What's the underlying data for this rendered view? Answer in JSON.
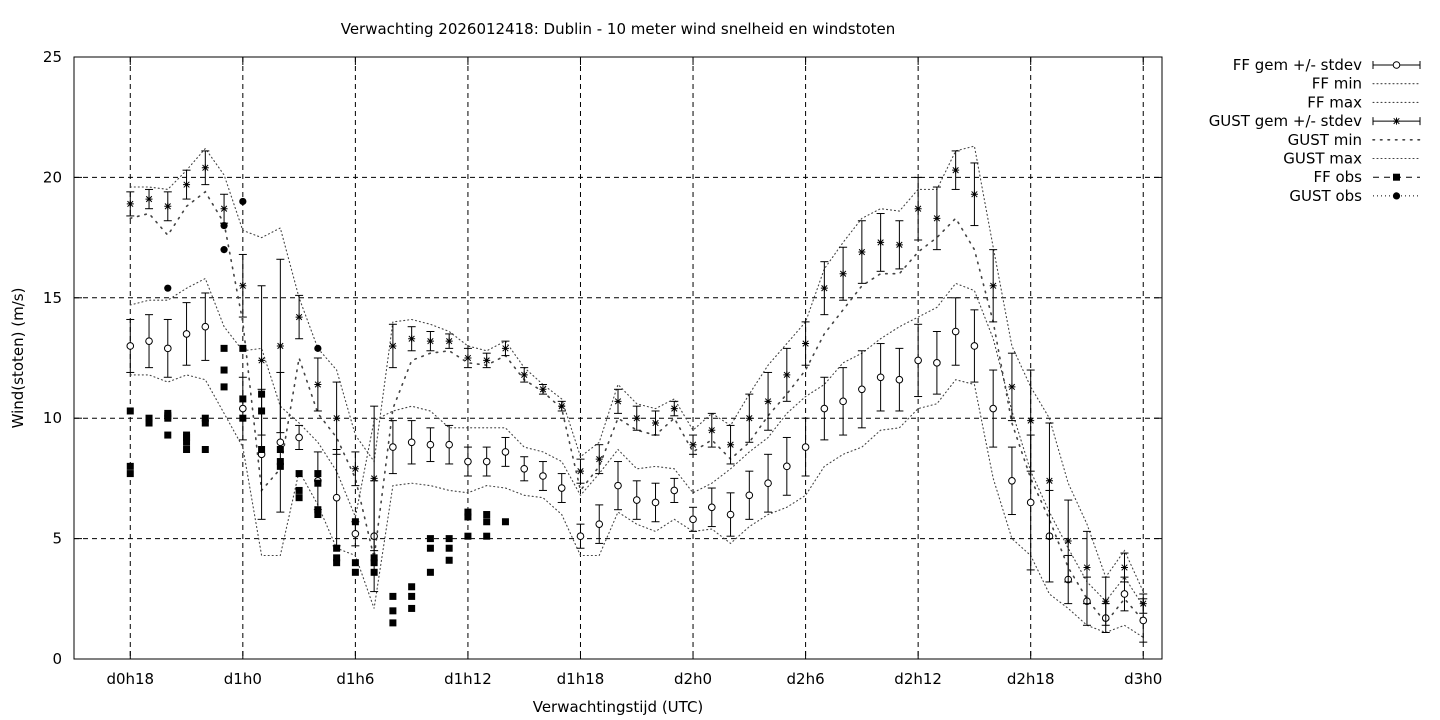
{
  "chart_data": {
    "type": "line",
    "title": "Verwachting 2026012418: Dublin - 10 meter wind snelheid en windstoten",
    "xlabel": "Verwachtingstijd (UTC)",
    "ylabel": "Wind(stoten) (m/s)",
    "ylim": [
      0,
      25
    ],
    "yticks": [
      0,
      5,
      10,
      15,
      20,
      25
    ],
    "xlim_hours": [
      15,
      73
    ],
    "xtick_labels": [
      "d0h18",
      "d1h0",
      "d1h6",
      "d1h12",
      "d1h18",
      "d2h0",
      "d2h6",
      "d2h12",
      "d2h18",
      "d3h0"
    ],
    "xtick_hours": [
      18,
      24,
      30,
      36,
      42,
      48,
      54,
      60,
      66,
      72
    ],
    "grid": true,
    "legend_position": "outside-right",
    "legend": [
      {
        "name": "FF gem +/- stdev",
        "style": "errorbar-circle"
      },
      {
        "name": "FF min",
        "style": "dotted"
      },
      {
        "name": "FF max",
        "style": "dotted"
      },
      {
        "name": "GUST gem +/- stdev",
        "style": "errorbar-star"
      },
      {
        "name": "GUST min",
        "style": "sparse-dotted"
      },
      {
        "name": "GUST max",
        "style": "dotted"
      },
      {
        "name": "FF obs",
        "style": "square"
      },
      {
        "name": "GUST obs",
        "style": "dot"
      }
    ],
    "series": [
      {
        "name": "FF gem +/- stdev",
        "x": [
          18,
          19,
          20,
          21,
          22,
          24,
          25,
          26,
          27,
          28,
          29,
          30,
          31,
          32,
          33,
          34,
          35,
          36,
          37,
          38,
          39,
          40,
          41,
          42,
          43,
          44,
          45,
          46,
          47,
          48,
          49,
          50,
          51,
          52,
          53,
          54,
          55,
          56,
          57,
          58,
          59,
          60,
          61,
          62,
          63,
          64,
          65,
          66,
          67,
          68,
          69,
          70,
          71,
          72
        ],
        "y": [
          13.0,
          13.2,
          12.9,
          13.5,
          13.8,
          10.4,
          8.5,
          9.0,
          9.2,
          7.4,
          6.7,
          5.2,
          5.1,
          8.8,
          9.0,
          8.9,
          8.9,
          8.2,
          8.2,
          8.6,
          7.9,
          7.6,
          7.1,
          5.1,
          5.6,
          7.2,
          6.6,
          6.5,
          7.0,
          5.8,
          6.3,
          6.0,
          6.8,
          7.3,
          8.0,
          8.8,
          10.4,
          10.7,
          11.2,
          11.7,
          11.6,
          12.4,
          12.3,
          13.6,
          13.0,
          10.4,
          7.4,
          6.5,
          5.1,
          3.3,
          2.4,
          1.7,
          2.7,
          1.6
        ],
        "sd": [
          1.1,
          1.1,
          1.2,
          1.3,
          1.4,
          1.3,
          2.7,
          2.9,
          0.5,
          1.2,
          2.0,
          0.5,
          2.3,
          1.1,
          0.9,
          0.7,
          0.8,
          0.6,
          0.6,
          0.6,
          0.5,
          0.6,
          0.6,
          0.5,
          0.8,
          1.0,
          0.8,
          0.8,
          0.5,
          0.5,
          0.8,
          0.9,
          1.0,
          1.2,
          1.2,
          1.2,
          1.3,
          1.4,
          1.6,
          1.4,
          1.3,
          1.5,
          1.3,
          1.4,
          1.5,
          1.6,
          1.4,
          2.8,
          1.9,
          1.0,
          1.0,
          0.6,
          0.7,
          0.9
        ]
      },
      {
        "name": "FF min",
        "x": [
          18,
          19,
          20,
          21,
          22,
          23,
          24,
          25,
          26,
          27,
          28,
          29,
          30,
          31,
          32,
          33,
          34,
          35,
          36,
          37,
          38,
          39,
          40,
          41,
          42,
          43,
          44,
          45,
          46,
          47,
          48,
          49,
          50,
          51,
          52,
          53,
          54,
          55,
          56,
          57,
          58,
          59,
          60,
          61,
          62,
          63,
          64,
          65,
          66,
          67,
          68,
          69,
          70,
          71,
          72
        ],
        "y": [
          11.8,
          11.8,
          11.5,
          11.8,
          11.6,
          10.2,
          8.8,
          4.3,
          4.3,
          7.8,
          6.4,
          4.6,
          4.3,
          2.1,
          7.2,
          7.3,
          7.2,
          7.0,
          6.9,
          7.2,
          7.1,
          6.8,
          6.7,
          6.0,
          4.3,
          4.3,
          6.1,
          5.6,
          5.3,
          5.8,
          5.3,
          5.4,
          4.8,
          5.5,
          6.0,
          6.3,
          6.8,
          8.0,
          8.5,
          8.8,
          9.5,
          9.6,
          10.4,
          10.6,
          11.6,
          11.4,
          7.5,
          5.0,
          4.3,
          2.7,
          2.1,
          1.4,
          1.1,
          1.4,
          0.9
        ]
      },
      {
        "name": "FF max",
        "x": [
          18,
          19,
          20,
          21,
          22,
          23,
          24,
          25,
          26,
          27,
          28,
          29,
          30,
          31,
          32,
          33,
          34,
          35,
          36,
          37,
          38,
          39,
          40,
          41,
          42,
          43,
          44,
          45,
          46,
          47,
          48,
          49,
          50,
          51,
          52,
          53,
          54,
          55,
          56,
          57,
          58,
          59,
          60,
          61,
          62,
          63,
          64,
          65,
          66,
          67,
          68,
          69,
          70,
          71,
          72
        ],
        "y": [
          14.7,
          14.9,
          14.9,
          15.4,
          15.8,
          13.8,
          12.8,
          12.9,
          10.5,
          9.8,
          9.0,
          7.8,
          5.9,
          9.9,
          10.3,
          10.5,
          10.3,
          9.6,
          9.6,
          9.6,
          9.6,
          8.8,
          8.6,
          8.2,
          6.8,
          7.7,
          8.7,
          7.9,
          8.0,
          7.9,
          6.9,
          7.3,
          7.9,
          8.6,
          9.2,
          10.2,
          10.9,
          11.4,
          12.3,
          12.7,
          13.3,
          13.8,
          14.2,
          14.6,
          15.6,
          15.3,
          13.3,
          10.3,
          7.8,
          6.1,
          4.6,
          3.2,
          2.4,
          3.4,
          2.2
        ]
      },
      {
        "name": "GUST gem +/- stdev",
        "x": [
          18,
          19,
          20,
          21,
          22,
          23,
          24,
          25,
          26,
          27,
          28,
          29,
          30,
          31,
          32,
          33,
          34,
          35,
          36,
          37,
          38,
          39,
          40,
          41,
          42,
          43,
          44,
          45,
          46,
          47,
          48,
          49,
          50,
          51,
          52,
          53,
          54,
          55,
          56,
          57,
          58,
          59,
          60,
          61,
          62,
          63,
          64,
          65,
          66,
          67,
          68,
          69,
          70,
          71,
          72
        ],
        "y": [
          18.9,
          19.1,
          18.8,
          19.7,
          20.4,
          18.7,
          15.5,
          12.4,
          13.0,
          14.2,
          11.4,
          10.0,
          7.9,
          7.5,
          13.0,
          13.3,
          13.2,
          13.2,
          12.5,
          12.4,
          12.9,
          11.8,
          11.2,
          10.5,
          7.8,
          8.3,
          10.7,
          10.0,
          9.8,
          10.4,
          8.9,
          9.5,
          8.9,
          10.0,
          10.7,
          11.8,
          13.1,
          15.4,
          16.0,
          16.9,
          17.3,
          17.2,
          18.7,
          18.3,
          20.3,
          19.3,
          15.5,
          11.3,
          9.9,
          7.4,
          4.9,
          3.8,
          2.4,
          3.8,
          2.3
        ],
        "sd": [
          0.5,
          0.4,
          0.6,
          0.6,
          0.7,
          0.6,
          1.3,
          3.1,
          3.6,
          0.9,
          1.1,
          1.5,
          0.7,
          3.0,
          0.9,
          0.5,
          0.4,
          0.3,
          0.4,
          0.3,
          0.3,
          0.3,
          0.2,
          0.2,
          0.5,
          0.6,
          0.5,
          0.5,
          0.5,
          0.3,
          0.4,
          0.7,
          0.8,
          1.0,
          1.2,
          1.1,
          0.9,
          1.1,
          1.1,
          1.3,
          1.2,
          1.0,
          1.3,
          1.3,
          0.8,
          1.3,
          1.5,
          1.4,
          2.1,
          2.4,
          1.7,
          1.5,
          1.0,
          0.6,
          0.4
        ]
      },
      {
        "name": "GUST min",
        "x": [
          18,
          19,
          20,
          21,
          22,
          23,
          24,
          25,
          26,
          27,
          28,
          29,
          30,
          31,
          32,
          33,
          34,
          35,
          36,
          37,
          38,
          39,
          40,
          41,
          42,
          43,
          44,
          45,
          46,
          47,
          48,
          49,
          50,
          51,
          52,
          53,
          54,
          55,
          56,
          57,
          58,
          59,
          60,
          61,
          62,
          63,
          64,
          65,
          66,
          67,
          68,
          69,
          70,
          71,
          72
        ],
        "y": [
          18.3,
          18.5,
          17.6,
          18.8,
          19.4,
          18.1,
          14.0,
          7.0,
          7.9,
          12.5,
          10.2,
          9.2,
          7.5,
          4.2,
          10.4,
          12.4,
          12.7,
          12.8,
          12.3,
          12.2,
          12.6,
          11.6,
          11.1,
          10.4,
          7.0,
          8.0,
          10.0,
          9.5,
          9.3,
          10.0,
          8.6,
          9.1,
          8.3,
          9.0,
          10.1,
          11.0,
          12.0,
          13.5,
          14.5,
          15.5,
          16.0,
          16.0,
          16.9,
          17.5,
          18.3,
          17.0,
          14.0,
          9.8,
          7.5,
          5.8,
          3.8,
          2.5,
          1.5,
          2.5,
          1.6
        ]
      },
      {
        "name": "GUST max",
        "x": [
          18,
          19,
          20,
          21,
          22,
          23,
          24,
          25,
          26,
          27,
          28,
          29,
          30,
          31,
          32,
          33,
          34,
          35,
          36,
          37,
          38,
          39,
          40,
          41,
          42,
          43,
          44,
          45,
          46,
          47,
          48,
          49,
          50,
          51,
          52,
          53,
          54,
          55,
          56,
          57,
          58,
          59,
          60,
          61,
          62,
          63,
          64,
          65,
          66,
          67,
          68,
          69,
          70,
          71,
          72
        ],
        "y": [
          19.6,
          19.6,
          19.5,
          20.3,
          21.2,
          20.1,
          17.8,
          17.5,
          17.9,
          15.0,
          12.9,
          12.0,
          9.3,
          8.2,
          14.0,
          14.1,
          13.9,
          13.6,
          13.0,
          12.8,
          13.2,
          12.1,
          11.4,
          10.8,
          8.4,
          9.0,
          11.4,
          10.6,
          10.4,
          10.8,
          9.5,
          10.2,
          9.7,
          11.0,
          12.2,
          13.1,
          14.0,
          16.2,
          17.3,
          18.3,
          18.7,
          18.6,
          19.5,
          19.5,
          21.1,
          21.3,
          17.1,
          13.0,
          11.3,
          10.0,
          7.3,
          5.6,
          3.4,
          4.5,
          2.8
        ]
      },
      {
        "name": "FF obs",
        "x": [
          18,
          18,
          18,
          19,
          19,
          20,
          20,
          20,
          20,
          21,
          21,
          21,
          21,
          22,
          22,
          22,
          23,
          23,
          23,
          24,
          24,
          24,
          25,
          25,
          25,
          26,
          26,
          26,
          27,
          27,
          27,
          28,
          28,
          28,
          28,
          29,
          29,
          29,
          30,
          30,
          30,
          31,
          31,
          31,
          32,
          32,
          32,
          33,
          33,
          33,
          34,
          34,
          34,
          35,
          35,
          35,
          36,
          36,
          36,
          37,
          37,
          37,
          38
        ],
        "y": [
          8.0,
          7.7,
          10.3,
          9.8,
          10.0,
          9.3,
          10.0,
          10.1,
          10.2,
          8.7,
          9.0,
          9.2,
          9.3,
          8.7,
          9.8,
          10.0,
          11.3,
          12.0,
          12.9,
          10.0,
          10.8,
          12.9,
          8.7,
          10.3,
          11.0,
          8.0,
          8.2,
          8.7,
          6.7,
          7.0,
          7.7,
          6.0,
          6.2,
          7.3,
          7.7,
          4.0,
          4.2,
          4.6,
          3.6,
          4.0,
          5.7,
          3.6,
          4.0,
          4.2,
          1.5,
          2.0,
          2.6,
          2.1,
          2.6,
          3.0,
          3.6,
          4.6,
          5.0,
          4.1,
          4.6,
          5.0,
          5.1,
          5.9,
          6.1,
          5.1,
          5.7,
          6.0,
          5.7
        ]
      },
      {
        "name": "GUST obs",
        "x": [
          20,
          23,
          23,
          24,
          28
        ],
        "y": [
          15.4,
          17.0,
          18.0,
          19.0,
          12.9
        ]
      }
    ]
  }
}
